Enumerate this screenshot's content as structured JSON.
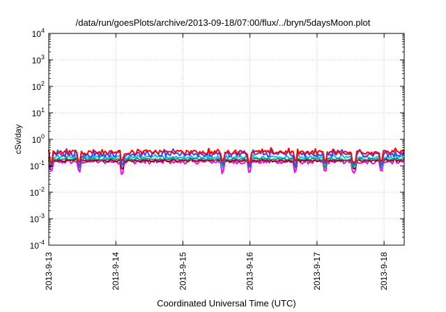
{
  "chart_data": {
    "type": "line",
    "title": "/data/run/goesPlots/archive/2013-09-18/07:00/flux/../bryn/5daysMoon.plot",
    "xlabel": "Coordinated Universal Time (UTC)",
    "ylabel": "cSv/day",
    "yscale": "log",
    "ylim_exp": [
      -4,
      4
    ],
    "y_tick_exponents": [
      -4,
      -3,
      -2,
      -1,
      0,
      1,
      2,
      3,
      4
    ],
    "y_tick_base": "10",
    "x_tick_labels": [
      "2013-9-13",
      "2013-9-14",
      "2013-9-15",
      "2013-9-16",
      "2013-9-17",
      "2013-9-18"
    ],
    "x_range_days": [
      0,
      5.3
    ],
    "grid": true,
    "series": [
      {
        "color": "#ff00ff",
        "base": 0.13,
        "dip": 0.06,
        "noise": 0.35
      },
      {
        "color": "#8b0000",
        "base": 0.15,
        "dip": 0.09,
        "noise": 0.15
      },
      {
        "color": "#00bfff",
        "base": 0.2,
        "dip": 0.1,
        "noise": 0.25
      },
      {
        "color": "#2e8b57",
        "base": 0.17,
        "dip": 0.1,
        "noise": 0.15
      },
      {
        "color": "#4040ff",
        "base": 0.25,
        "dip": 0.12,
        "noise": 0.5
      },
      {
        "color": "#ff0000",
        "base": 0.3,
        "dip": 0.15,
        "noise": 0.4
      }
    ]
  }
}
